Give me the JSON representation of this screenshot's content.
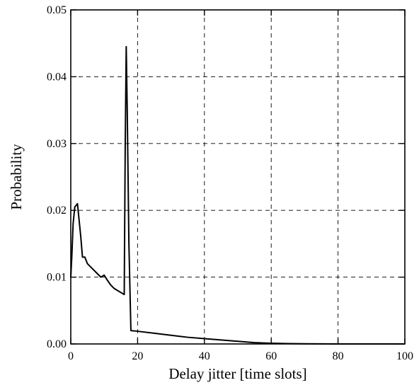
{
  "chart_data": {
    "type": "line",
    "title": "",
    "xlabel": "Delay jitter [time slots]",
    "ylabel": "Probability",
    "xlim": [
      0,
      100
    ],
    "ylim": [
      0,
      0.05
    ],
    "x_ticks": [
      0,
      20,
      40,
      60,
      80,
      100
    ],
    "y_ticks": [
      0.0,
      0.01,
      0.02,
      0.03,
      0.04,
      0.05
    ],
    "x_tick_labels": [
      "0",
      "20",
      "40",
      "60",
      "80",
      "100"
    ],
    "y_tick_labels": [
      "0.00",
      "0.01",
      "0.02",
      "0.03",
      "0.04",
      "0.05"
    ],
    "grid": true,
    "grid_style": "dashed",
    "series": [
      {
        "color": "#000000",
        "x": [
          0,
          0.3,
          0.7,
          1.2,
          2,
          2.4,
          3.0,
          3.5,
          4.2,
          5,
          6,
          7,
          8,
          9,
          10,
          11,
          12,
          13,
          14,
          15,
          16,
          16.3,
          16.6,
          16.9,
          17.4,
          18,
          20,
          25,
          30,
          35,
          40,
          45,
          50,
          55,
          60,
          65,
          70,
          80,
          90,
          100
        ],
        "y": [
          0.01,
          0.013,
          0.018,
          0.0205,
          0.021,
          0.019,
          0.016,
          0.013,
          0.013,
          0.012,
          0.0115,
          0.011,
          0.0105,
          0.01,
          0.0103,
          0.0095,
          0.0088,
          0.0083,
          0.008,
          0.0077,
          0.0074,
          0.03,
          0.0445,
          0.035,
          0.015,
          0.002,
          0.0019,
          0.0016,
          0.0013,
          0.001,
          0.0008,
          0.0006,
          0.0004,
          0.0002,
          0.0001,
          5e-05,
          2e-05,
          0.0,
          0.0,
          0.0
        ]
      }
    ]
  }
}
